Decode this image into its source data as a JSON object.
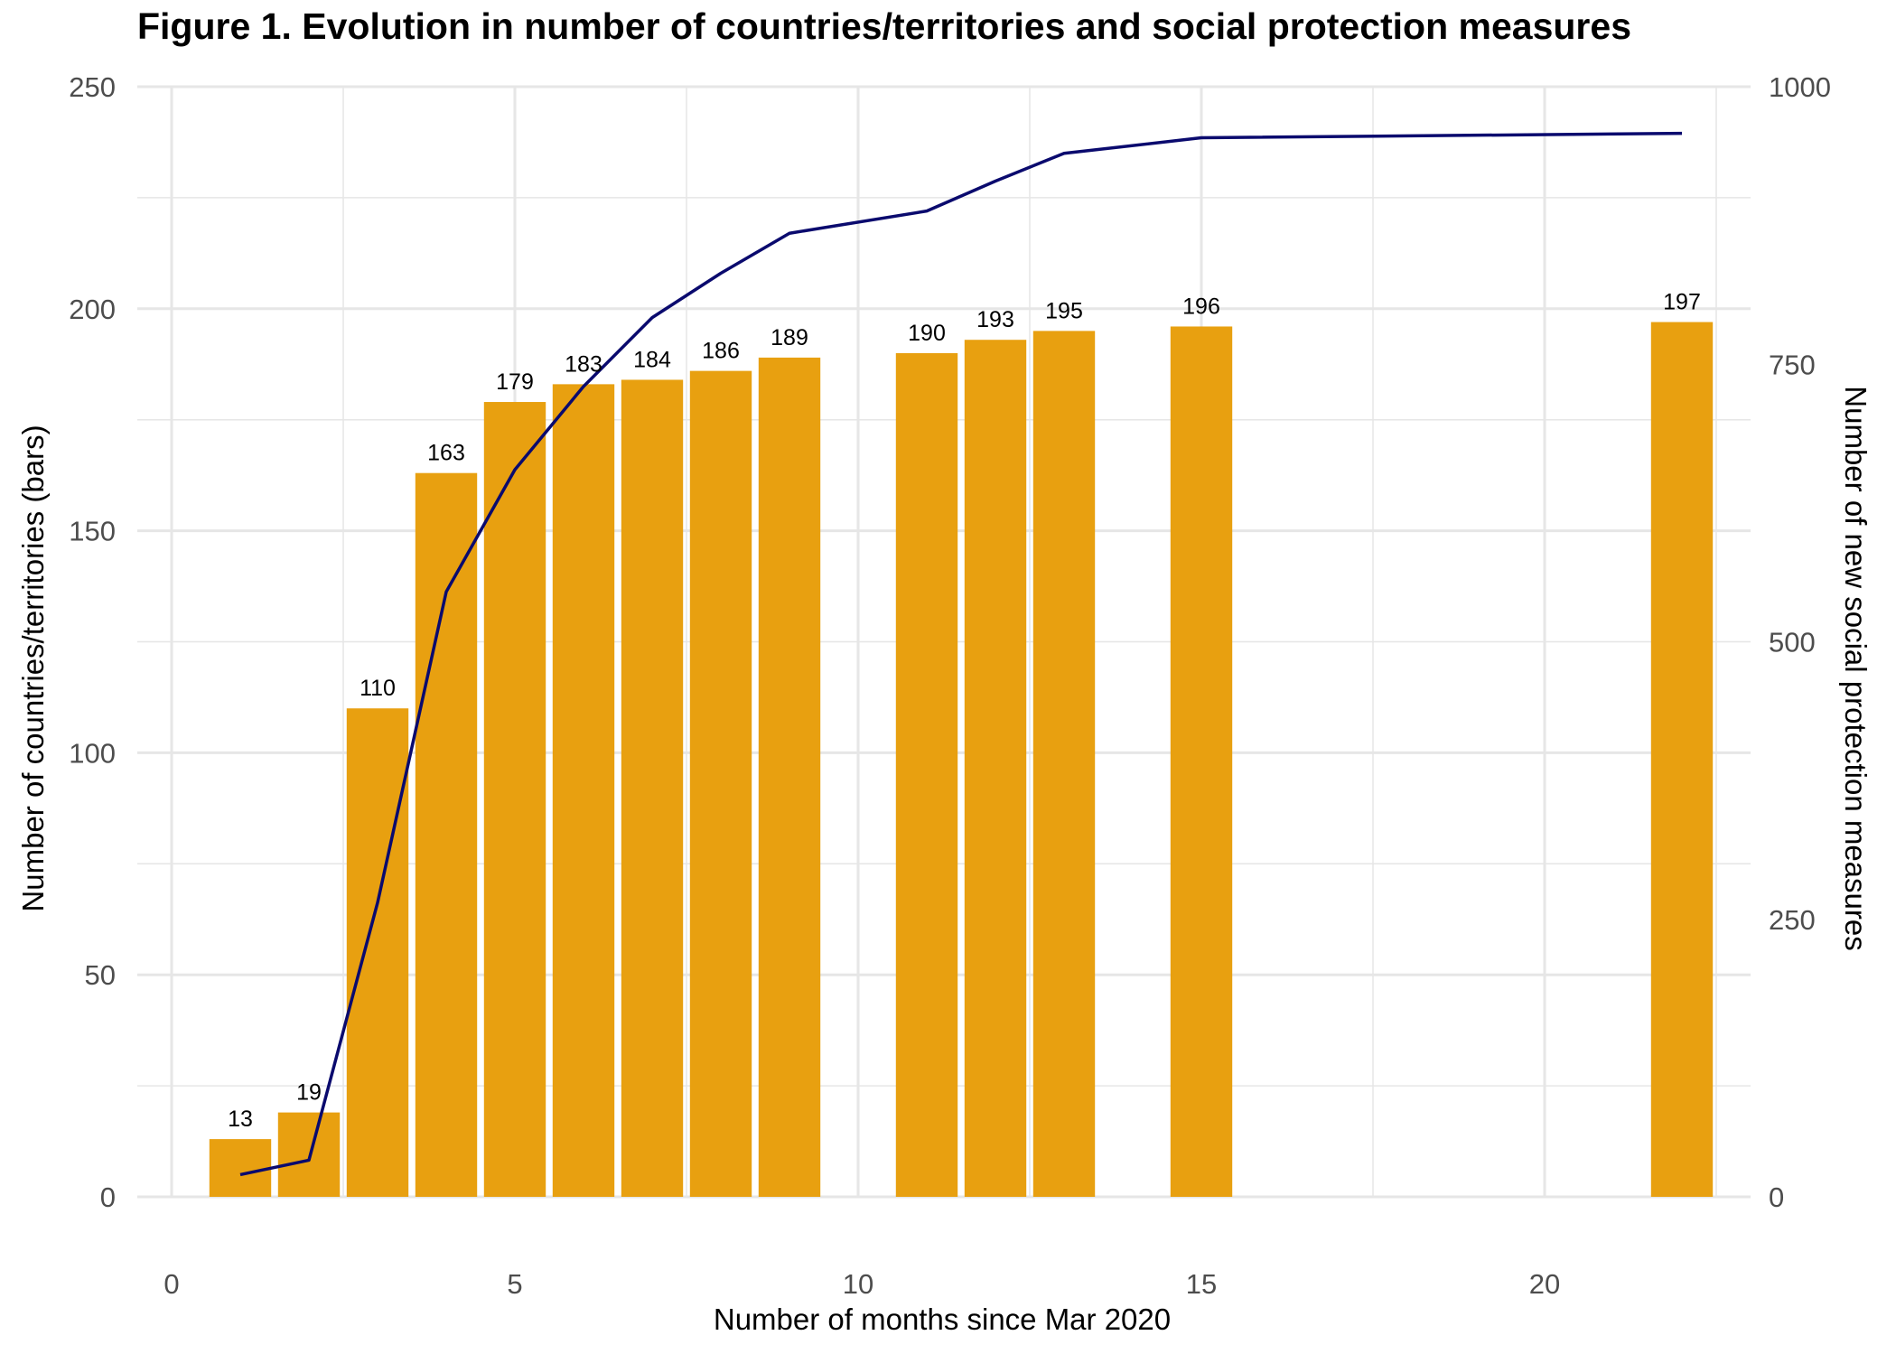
{
  "chart_data": {
    "type": "bar",
    "title": "Figure 1. Evolution in number of countries/territories and social protection measures",
    "xlabel": "Number of months since Mar 2020",
    "ylabel": "Number of countries/territories (bars)",
    "y2label": "Number of new social protection measures",
    "xlim": [
      -0.5,
      23
    ],
    "ylim": [
      0,
      250
    ],
    "y2lim": [
      0,
      1000
    ],
    "x_ticks": [
      0,
      5,
      10,
      15,
      20
    ],
    "y_ticks": [
      0,
      50,
      100,
      150,
      200,
      250
    ],
    "y2_ticks": [
      0,
      250,
      500,
      750,
      1000
    ],
    "grid": true,
    "colors": {
      "bars": "#E8A010",
      "line": "#0A0A6E",
      "grid": "#E6E6E6"
    },
    "series": [
      {
        "type": "bar",
        "axis": "left",
        "x": [
          1,
          2,
          3,
          4,
          5,
          6,
          7,
          8,
          9,
          11,
          12,
          13,
          15,
          22
        ],
        "values": [
          13,
          19,
          110,
          163,
          179,
          183,
          184,
          186,
          189,
          190,
          193,
          195,
          196,
          197
        ],
        "labels": [
          "13",
          "19",
          "110",
          "163",
          "179",
          "183",
          "184",
          "186",
          "189",
          "190",
          "193",
          "195",
          "196",
          "197"
        ]
      },
      {
        "type": "line",
        "axis": "right",
        "x": [
          1,
          2,
          3,
          4,
          5,
          6,
          7,
          8,
          9,
          11,
          12,
          13,
          15,
          22
        ],
        "values": [
          20,
          33,
          265,
          545,
          655,
          730,
          792,
          832,
          868,
          888,
          915,
          940,
          954,
          958
        ]
      }
    ]
  }
}
